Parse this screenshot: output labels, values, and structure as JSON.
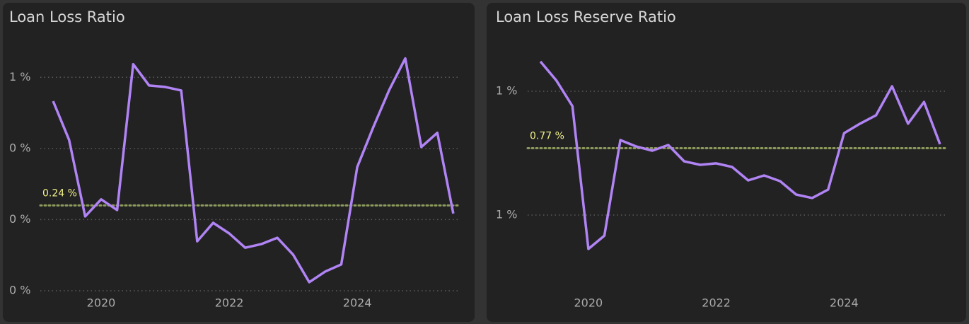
{
  "chart_data": [
    {
      "type": "line",
      "title": "Loan Loss Ratio",
      "color": "#b184f5",
      "x": [
        2019.25,
        2019.5,
        2019.75,
        2020.0,
        2020.25,
        2020.5,
        2020.75,
        2021.0,
        2021.25,
        2021.5,
        2021.75,
        2022.0,
        2022.25,
        2022.5,
        2022.75,
        2023.0,
        2023.25,
        2023.5,
        2023.75,
        2024.0,
        2024.25,
        2024.5,
        2024.75,
        2025.0,
        2025.25,
        2025.5
      ],
      "values": [
        0.533,
        0.424,
        0.209,
        0.257,
        0.227,
        0.637,
        0.577,
        0.573,
        0.563,
        0.139,
        0.191,
        0.161,
        0.121,
        0.131,
        0.149,
        0.101,
        0.024,
        0.054,
        0.074,
        0.348,
        0.46,
        0.565,
        0.653,
        0.404,
        0.444,
        0.217
      ],
      "xlim": [
        2019.05,
        2025.6
      ],
      "xticks": [
        2020,
        2022,
        2024
      ],
      "ylim": [
        0,
        0.7
      ],
      "yticks": [
        {
          "value": 0,
          "label": "0 %"
        },
        {
          "value": 0.2,
          "label": "0 %"
        },
        {
          "value": 0.4,
          "label": "0 %"
        },
        {
          "value": 0.6,
          "label": "1 %"
        }
      ],
      "average": {
        "value": 0.24,
        "label": "0.24 %"
      },
      "average_color": "#8c9a5c",
      "grid": true
    },
    {
      "type": "line",
      "title": "Loan Loss Reserve Ratio",
      "color": "#b184f5",
      "x": [
        2019.25,
        2019.5,
        2019.75,
        2020.0,
        2020.25,
        2020.5,
        2020.75,
        2021.0,
        2021.25,
        2021.5,
        2021.75,
        2022.0,
        2022.25,
        2022.5,
        2022.75,
        2023.0,
        2023.25,
        2023.5,
        2023.75,
        2024.0,
        2024.25,
        2024.5,
        2024.75,
        2025.0,
        2025.25,
        2025.5
      ],
      "values": [
        1.12,
        1.043,
        0.94,
        0.363,
        0.417,
        0.803,
        0.777,
        0.76,
        0.783,
        0.717,
        0.703,
        0.709,
        0.694,
        0.64,
        0.66,
        0.637,
        0.583,
        0.569,
        0.603,
        0.831,
        0.869,
        0.903,
        1.02,
        0.869,
        0.957,
        0.786
      ],
      "xlim": [
        2019.05,
        2025.6
      ],
      "xticks": [
        2020,
        2022,
        2024
      ],
      "ylim": [
        0.2,
        1.2
      ],
      "yticks": [
        {
          "value": 0.5,
          "label": "1 %"
        },
        {
          "value": 1.0,
          "label": "1 %"
        }
      ],
      "average": {
        "value": 0.77,
        "label": "0.77 %"
      },
      "average_color": "#8c9a5c",
      "grid": true
    }
  ]
}
